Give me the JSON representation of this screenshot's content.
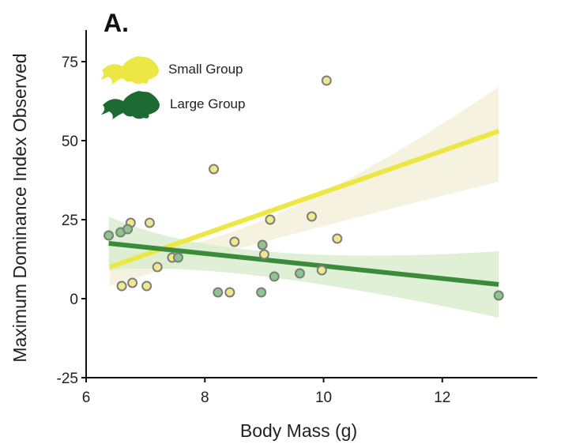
{
  "panel_label": "A.",
  "colors": {
    "small": "#ece745",
    "small_band": "#f3f0d9",
    "large": "#3c8b3a",
    "large_band": "#d7eccd",
    "large_fish": "#1d6b33",
    "point_edge": "#7d7d7d"
  },
  "icons": {
    "small_group": "fish-icon",
    "large_group": "fish-icon"
  },
  "chart_data": {
    "type": "scatter",
    "title": "",
    "xlabel": "Body Mass (g)",
    "ylabel": "Maximum Dominance Index Observed",
    "xlim": [
      6,
      13.6
    ],
    "ylim": [
      -25,
      85
    ],
    "xticks": [
      6,
      8,
      10,
      12
    ],
    "yticks": [
      -25,
      0,
      25,
      50,
      75
    ],
    "xtick_labels": [
      "6",
      "8",
      "10",
      "12"
    ],
    "ytick_labels": [
      "-25",
      "0",
      "25",
      "50",
      "75"
    ],
    "grid": false,
    "legend_position": "top-left",
    "series": [
      {
        "name": "Small Group",
        "points": [
          [
            6.6,
            4
          ],
          [
            6.75,
            24
          ],
          [
            6.78,
            5
          ],
          [
            7.02,
            4
          ],
          [
            7.07,
            24
          ],
          [
            7.2,
            10
          ],
          [
            7.45,
            13
          ],
          [
            8.15,
            41
          ],
          [
            8.42,
            2
          ],
          [
            8.5,
            18
          ],
          [
            9.0,
            14
          ],
          [
            9.1,
            25
          ],
          [
            9.8,
            26
          ],
          [
            9.97,
            9
          ],
          [
            10.05,
            69
          ],
          [
            10.23,
            19
          ]
        ],
        "fit": {
          "x": [
            6.4,
            12.95
          ],
          "y": [
            10,
            53
          ]
        },
        "ci_upper": [
          [
            6.4,
            16
          ],
          [
            9.0,
            25
          ],
          [
            12.95,
            67
          ]
        ],
        "ci_lower": [
          [
            6.4,
            4
          ],
          [
            9.0,
            18
          ],
          [
            12.95,
            37
          ]
        ]
      },
      {
        "name": "Large Group",
        "points": [
          [
            6.38,
            20
          ],
          [
            6.58,
            21
          ],
          [
            6.7,
            22
          ],
          [
            7.55,
            13
          ],
          [
            8.22,
            2
          ],
          [
            8.95,
            2
          ],
          [
            8.97,
            17
          ],
          [
            9.17,
            7
          ],
          [
            9.6,
            8
          ],
          [
            12.95,
            1
          ]
        ],
        "fit": {
          "x": [
            6.38,
            12.95
          ],
          "y": [
            17.5,
            4.5
          ]
        },
        "ci_upper": [
          [
            6.38,
            26
          ],
          [
            9.0,
            15
          ],
          [
            12.95,
            15
          ]
        ],
        "ci_lower": [
          [
            6.38,
            9
          ],
          [
            9.0,
            7
          ],
          [
            12.95,
            -6
          ]
        ]
      }
    ]
  }
}
